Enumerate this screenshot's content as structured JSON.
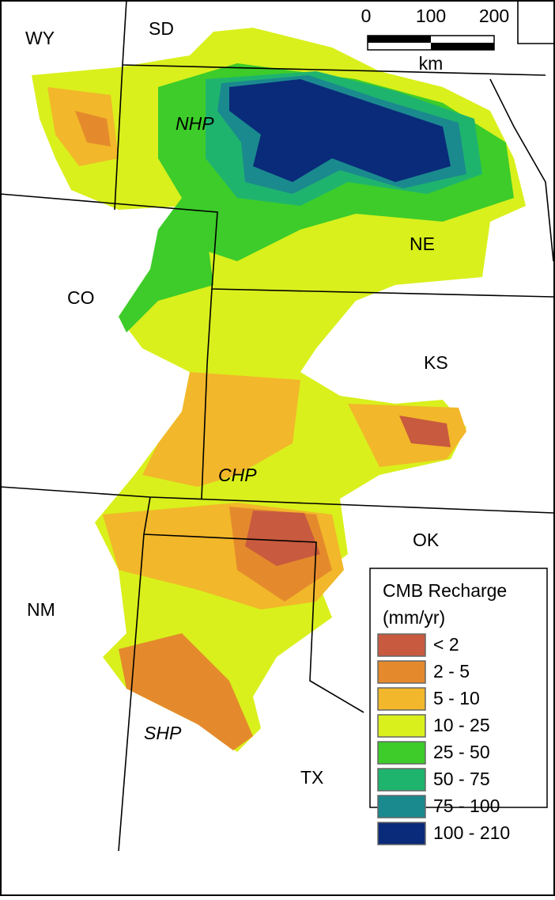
{
  "map": {
    "states": [
      "WY",
      "SD",
      "CO",
      "NE",
      "KS",
      "OK",
      "NM",
      "TX"
    ],
    "regions": [
      "NHP",
      "CHP",
      "SHP"
    ],
    "scale_bar": {
      "ticks": [
        0,
        100,
        200
      ],
      "unit": "km"
    },
    "legend": {
      "title": "CMB Recharge",
      "unit": "(mm/yr)",
      "classes": [
        {
          "label": "< 2",
          "color": "#c85a3f"
        },
        {
          "label": "2 - 5",
          "color": "#e48a2c"
        },
        {
          "label": "5 - 10",
          "color": "#f2b72a"
        },
        {
          "label": "10 - 25",
          "color": "#d9f01c"
        },
        {
          "label": "25 - 50",
          "color": "#3dcc2a"
        },
        {
          "label": "50 - 75",
          "color": "#1fb46e"
        },
        {
          "label": "75 - 100",
          "color": "#1a8a8e"
        },
        {
          "label": "100 - 210",
          "color": "#0a2a7a"
        }
      ]
    }
  }
}
